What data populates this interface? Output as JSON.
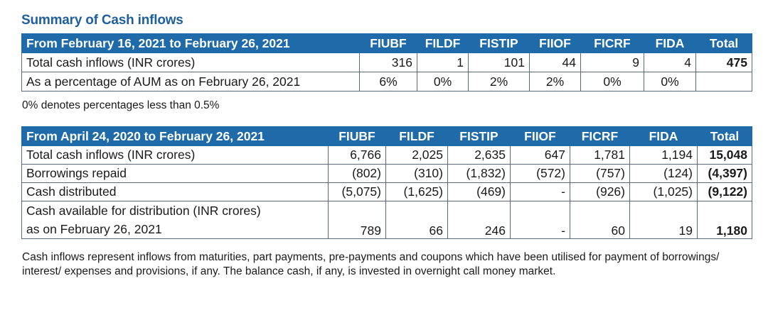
{
  "title": "Summary of Cash inflows",
  "table1": {
    "header": [
      "From February 16, 2021 to February 26, 2021",
      "FIUBF",
      "FILDF",
      "FISTIP",
      "FIIOF",
      "FICRF",
      "FIDA",
      "Total"
    ],
    "rows": [
      [
        "Total cash inflows (INR crores)",
        "316",
        "1",
        "101",
        "44",
        "9",
        "4",
        "475"
      ],
      [
        "As a percentage of AUM as on February 26, 2021",
        "6%",
        "0%",
        "2%",
        "2%",
        "0%",
        "0%",
        ""
      ]
    ]
  },
  "note1": "0% denotes percentages less than 0.5%",
  "table2": {
    "header": [
      "From April 24, 2020 to February 26, 2021",
      "FIUBF",
      "FILDF",
      "FISTIP",
      "FIIOF",
      "FICRF",
      "FIDA",
      "Total"
    ],
    "rows": [
      [
        "Total cash inflows (INR crores)",
        "6,766",
        "2,025",
        "2,635",
        "647",
        "1,781",
        "1,194",
        "15,048"
      ],
      [
        "Borrowings repaid",
        "(802)",
        "(310)",
        "(1,832)",
        "(572)",
        "(757)",
        "(124)",
        "(4,397)"
      ],
      [
        "Cash distributed",
        "(5,075)",
        "(1,625)",
        "(469)",
        "-",
        "(926)",
        "(1,025)",
        "(9,122)"
      ]
    ],
    "last_row": {
      "label_line1": "Cash available for distribution (INR crores)",
      "label_line2": "as on February 26, 2021",
      "values": [
        "789",
        "66",
        "246",
        "-",
        "60",
        "19",
        "1,180"
      ]
    }
  },
  "note2": "Cash inflows represent inflows from maturities, part payments, pre-payments and coupons which have been utilised for payment of borrowings/ interest/ expenses and provisions, if any. The balance cash, if any, is invested in overnight call money market."
}
